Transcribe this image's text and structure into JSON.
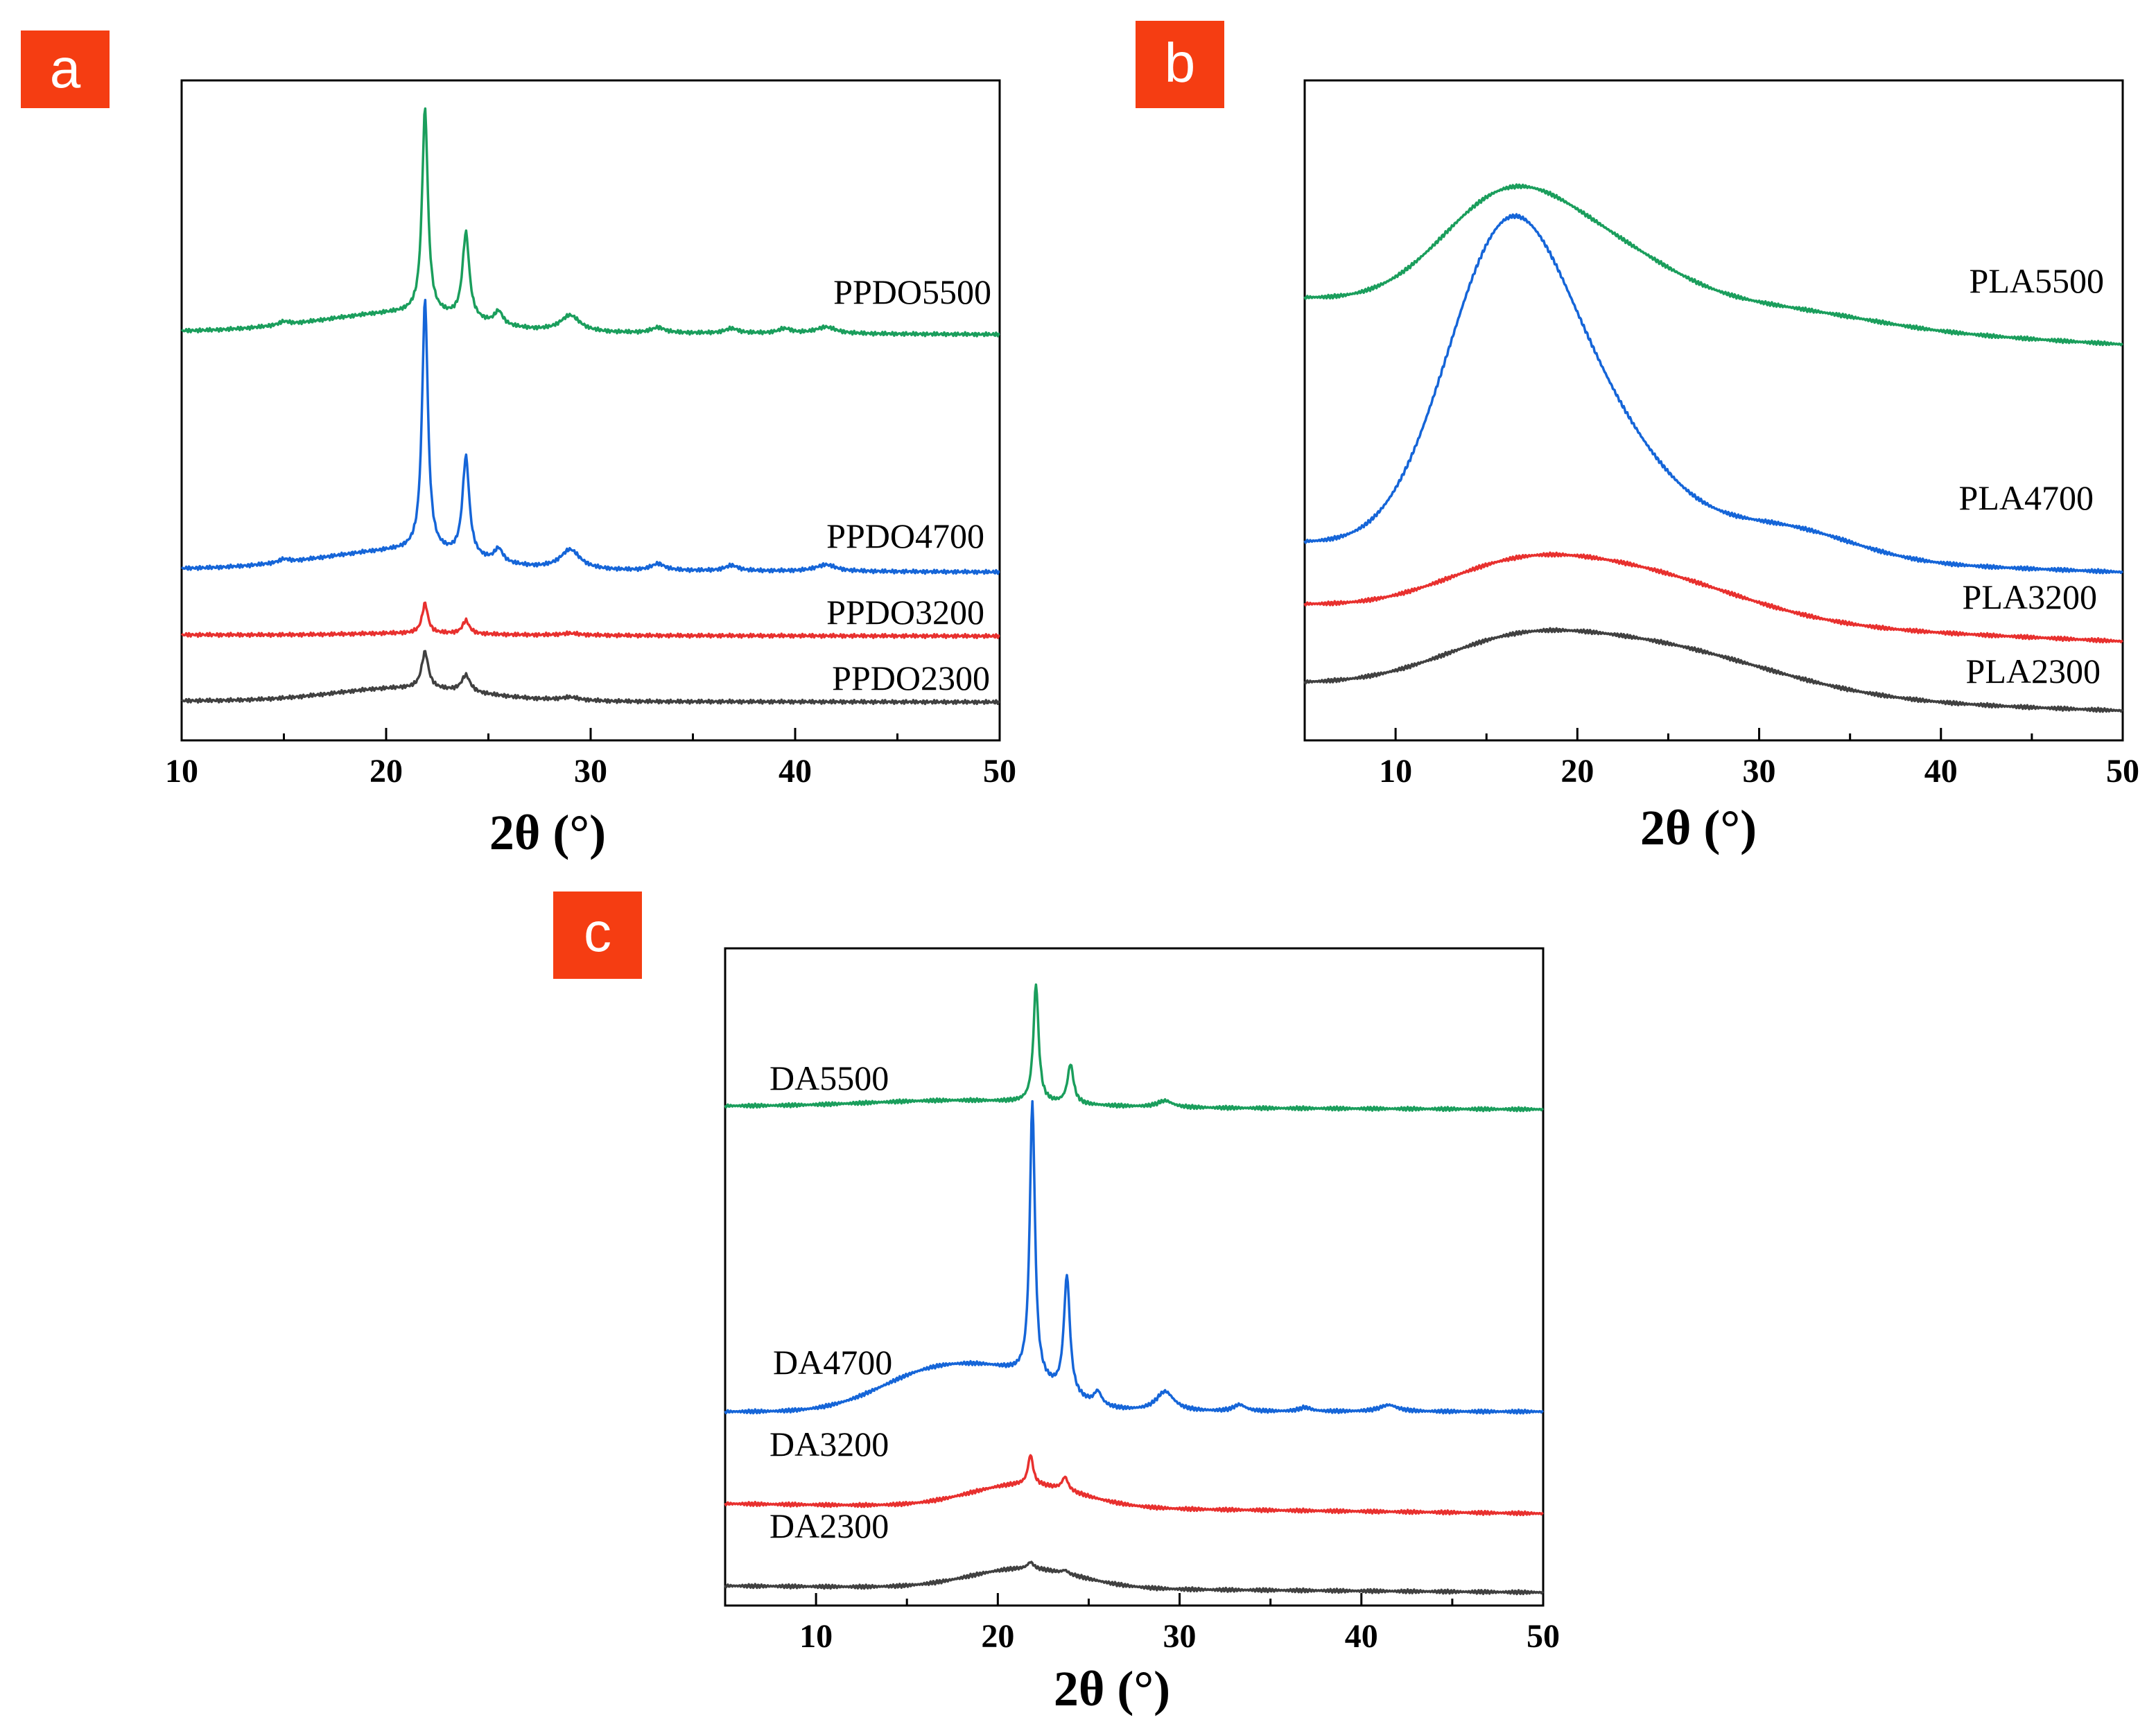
{
  "figure": {
    "colors": {
      "green": "#1a9e5c",
      "blue": "#1565d8",
      "red": "#e8302e",
      "black": "#404040",
      "badge": "#f53d12"
    }
  },
  "chart_data": [
    {
      "id": "a",
      "panel_letter": "a",
      "type": "line",
      "xlabel": "2θ (°)",
      "ylabel": "",
      "xlim": [
        10,
        50
      ],
      "xticks": [
        10,
        20,
        30,
        40,
        50
      ],
      "ylim": [
        0,
        10
      ],
      "series": [
        {
          "name": "PPDO5500",
          "color": "#1a9e5c",
          "baseline": 6.2,
          "end": 6.15,
          "humps": [
            [
              21.5,
              0.25,
              3.0
            ],
            [
              17,
              0.1,
              3
            ]
          ],
          "peaks": [
            [
              21.9,
              3.1,
              0.17
            ],
            [
              23.9,
              1.3,
              0.2
            ],
            [
              25.5,
              0.2,
              0.25
            ],
            [
              29.0,
              0.25,
              0.6
            ],
            [
              33.3,
              0.08,
              0.4
            ],
            [
              36.9,
              0.07,
              0.4
            ],
            [
              39.5,
              0.07,
              0.4
            ],
            [
              41.5,
              0.1,
              0.6
            ],
            [
              15.0,
              0.05,
              0.3
            ]
          ]
        },
        {
          "name": "PPDO4700",
          "color": "#1565d8",
          "baseline": 2.6,
          "end": 2.55,
          "humps": [
            [
              21.5,
              0.25,
              3.0
            ],
            [
              17,
              0.1,
              3
            ]
          ],
          "peaks": [
            [
              21.9,
              3.8,
              0.17
            ],
            [
              23.9,
              1.5,
              0.2
            ],
            [
              25.5,
              0.2,
              0.25
            ],
            [
              29.0,
              0.3,
              0.6
            ],
            [
              33.3,
              0.1,
              0.4
            ],
            [
              36.9,
              0.08,
              0.4
            ],
            [
              41.5,
              0.1,
              0.6
            ],
            [
              15.0,
              0.05,
              0.3
            ]
          ]
        },
        {
          "name": "PPDO3200",
          "color": "#e8302e",
          "baseline": 1.6,
          "end": 1.58,
          "humps": [
            [
              21.5,
              0.03,
              3.0
            ]
          ],
          "peaks": [
            [
              21.9,
              0.45,
              0.17
            ],
            [
              23.9,
              0.2,
              0.2
            ],
            [
              29.0,
              0.03,
              0.6
            ]
          ]
        },
        {
          "name": "PPDO2300",
          "color": "#404040",
          "baseline": 0.6,
          "end": 0.58,
          "humps": [
            [
              21.0,
              0.2,
              3.5
            ]
          ],
          "peaks": [
            [
              21.9,
              0.55,
              0.2
            ],
            [
              23.9,
              0.25,
              0.25
            ],
            [
              29.0,
              0.05,
              0.6
            ]
          ]
        }
      ]
    },
    {
      "id": "b",
      "panel_letter": "b",
      "type": "line",
      "xlabel": "2θ (°)",
      "ylabel": "",
      "xlim": [
        5,
        50
      ],
      "xticks": [
        10,
        20,
        30,
        40,
        50
      ],
      "ylim": [
        0,
        10
      ],
      "series": [
        {
          "name": "PLA5500",
          "color": "#1a9e5c",
          "baseline": 6.7,
          "end": 6.0,
          "humps": [
            [
              16,
              1.6,
              3.6
            ],
            [
              22,
              0.8,
              3.8
            ],
            [
              31,
              0.25,
              5
            ]
          ],
          "peaks": []
        },
        {
          "name": "PLA4700",
          "color": "#1565d8",
          "baseline": 3.0,
          "end": 2.55,
          "humps": [
            [
              16,
              4.5,
              3.3
            ],
            [
              21.5,
              1.6,
              3.6
            ],
            [
              31,
              0.5,
              4
            ]
          ],
          "peaks": []
        },
        {
          "name": "PLA3200",
          "color": "#e8302e",
          "baseline": 2.05,
          "end": 1.5,
          "humps": [
            [
              16,
              0.4,
              4
            ],
            [
              22.5,
              0.75,
              6
            ]
          ],
          "peaks": []
        },
        {
          "name": "PLA2300",
          "color": "#404040",
          "baseline": 0.85,
          "end": 0.45,
          "humps": [
            [
              16,
              0.35,
              4
            ],
            [
              23,
              0.8,
              7
            ]
          ],
          "peaks": []
        }
      ]
    },
    {
      "id": "c",
      "panel_letter": "c",
      "type": "line",
      "xlabel": "2θ (°)",
      "ylabel": "",
      "xlim": [
        5,
        50
      ],
      "xticks": [
        10,
        20,
        30,
        40,
        50
      ],
      "ylim": [
        0,
        10
      ],
      "series": [
        {
          "name": "DA5500",
          "color": "#1a9e5c",
          "baseline": 7.6,
          "end": 7.55,
          "humps": [
            [
              18,
              0.1,
              5
            ]
          ],
          "peaks": [
            [
              22.1,
              1.8,
              0.17
            ],
            [
              24.0,
              0.6,
              0.2
            ],
            [
              29.2,
              0.1,
              0.5
            ]
          ]
        },
        {
          "name": "DA4700",
          "color": "#1565d8",
          "baseline": 2.95,
          "end": 2.95,
          "humps": [
            [
              16.5,
              0.6,
              3
            ],
            [
              21,
              0.4,
              2.5
            ]
          ],
          "peaks": [
            [
              21.9,
              4.2,
              0.17
            ],
            [
              23.8,
              1.8,
              0.2
            ],
            [
              25.5,
              0.2,
              0.25
            ],
            [
              29.2,
              0.3,
              0.6
            ],
            [
              33.3,
              0.1,
              0.4
            ],
            [
              36.9,
              0.06,
              0.4
            ],
            [
              41.5,
              0.1,
              0.6
            ]
          ]
        },
        {
          "name": "DA3200",
          "color": "#e8302e",
          "baseline": 1.55,
          "end": 1.4,
          "humps": [
            [
              21.5,
              0.35,
              3
            ]
          ],
          "peaks": [
            [
              21.8,
              0.45,
              0.17
            ],
            [
              23.7,
              0.2,
              0.2
            ]
          ]
        },
        {
          "name": "DA2300",
          "color": "#404040",
          "baseline": 0.3,
          "end": 0.2,
          "humps": [
            [
              21.5,
              0.3,
              3
            ]
          ],
          "peaks": [
            [
              21.8,
              0.1,
              0.2
            ],
            [
              23.7,
              0.05,
              0.2
            ]
          ]
        }
      ]
    }
  ]
}
